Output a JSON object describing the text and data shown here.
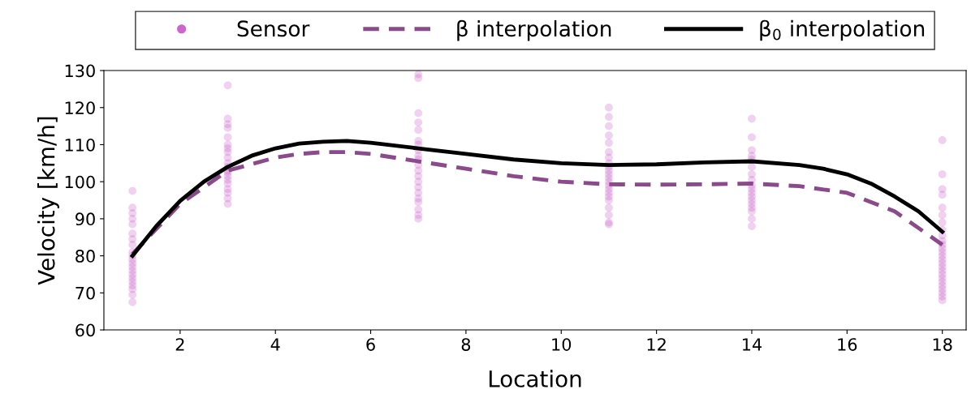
{
  "chart_data": {
    "type": "scatter",
    "xlabel": "Location",
    "ylabel": "Velocity [km/h]",
    "xlim": [
      0.4,
      18.5
    ],
    "xticks": [
      2,
      4,
      6,
      8,
      10,
      12,
      14,
      16,
      18
    ],
    "ylim": [
      60,
      130
    ],
    "yticks": [
      60,
      70,
      80,
      90,
      100,
      110,
      120,
      130
    ],
    "grid": false,
    "legend": "top",
    "series": [
      {
        "name": "Sensor",
        "color": "#cc66cc",
        "marker": "circle",
        "x": [
          1,
          1,
          1,
          1,
          1,
          1,
          1,
          1,
          1,
          1,
          1,
          1,
          1,
          1,
          1,
          1,
          1,
          1,
          1,
          1,
          1,
          3,
          3,
          3,
          3,
          3,
          3,
          3,
          3,
          3,
          3,
          3,
          3,
          3,
          3,
          3,
          3,
          3,
          3,
          3,
          3,
          7,
          7,
          7,
          7,
          7,
          7,
          7,
          7,
          7,
          7,
          7,
          7,
          7,
          7,
          7,
          7,
          7,
          7,
          7,
          7,
          7,
          11,
          11,
          11,
          11,
          11,
          11,
          11,
          11,
          11,
          11,
          11,
          11,
          11,
          11,
          11,
          11,
          11,
          11,
          11,
          11,
          11,
          11,
          14,
          14,
          14,
          14,
          14,
          14,
          14,
          14,
          14,
          14,
          14,
          14,
          14,
          14,
          14,
          14,
          14,
          14,
          18,
          18,
          18,
          18,
          18,
          18,
          18,
          18,
          18,
          18,
          18,
          18,
          18,
          18,
          18,
          18,
          18,
          18,
          18,
          18,
          18,
          18,
          18,
          18,
          18,
          18
        ],
        "values": [
          97.5,
          93,
          91.5,
          90,
          88.5,
          86,
          84.5,
          83,
          81,
          80,
          79,
          78,
          77,
          76,
          75,
          74,
          73,
          72,
          71,
          69.5,
          67.5,
          126,
          117,
          115.5,
          114.5,
          112,
          110,
          109,
          108,
          106.5,
          105,
          104,
          103,
          102.5,
          101.5,
          100.5,
          99.5,
          98,
          97,
          95.5,
          94,
          129,
          128,
          118.5,
          116,
          114,
          111,
          110,
          108.5,
          107,
          106,
          104.5,
          103,
          101.5,
          100,
          98.5,
          97,
          95.5,
          94.5,
          92.5,
          91,
          90,
          120,
          117.5,
          115,
          112.5,
          110.5,
          108,
          106.5,
          105,
          104,
          103,
          102,
          101,
          100,
          99,
          98,
          97,
          96,
          95,
          93,
          91,
          89,
          88.5,
          117,
          112,
          108.5,
          107,
          106,
          104,
          102,
          100.5,
          99,
          98,
          97,
          96,
          95,
          94,
          93,
          92,
          90,
          88,
          111.2,
          102,
          98,
          96.5,
          93,
          91,
          89,
          87,
          85.5,
          84,
          83,
          82,
          81,
          80,
          79,
          78,
          77,
          76,
          75,
          74,
          73,
          72,
          71,
          70,
          69,
          68
        ]
      },
      {
        "name": "β interpolation",
        "type": "line",
        "color": "#8b4a8b",
        "line_style": "dashed",
        "x": [
          1,
          2,
          3,
          4,
          4.5,
          5,
          5.5,
          6,
          7,
          8,
          9,
          10,
          11,
          12,
          13,
          14,
          15,
          16,
          17,
          18
        ],
        "values": [
          80.5,
          94,
          103,
          106.5,
          107.5,
          108,
          108,
          107.5,
          105.5,
          103.5,
          101.5,
          100,
          99.3,
          99.2,
          99.3,
          99.5,
          98.8,
          97,
          92,
          83
        ]
      },
      {
        "name": "β$_{0}$ interpolation",
        "type": "line",
        "color": "#000000",
        "line_style": "solid",
        "x": [
          1,
          1.5,
          2,
          2.5,
          3,
          3.5,
          4,
          4.5,
          5,
          5.5,
          6,
          7,
          8,
          9,
          10,
          11,
          12,
          13,
          14,
          15,
          15.5,
          16,
          16.5,
          17,
          17.5,
          18
        ],
        "values": [
          80,
          88,
          94.8,
          100,
          104,
          107,
          109,
          110.3,
          110.8,
          111,
          110.5,
          109,
          107.5,
          106,
          105,
          104.5,
          104.7,
          105.2,
          105.5,
          104.5,
          103.5,
          102,
          99.5,
          96,
          92,
          86.5
        ]
      }
    ]
  }
}
